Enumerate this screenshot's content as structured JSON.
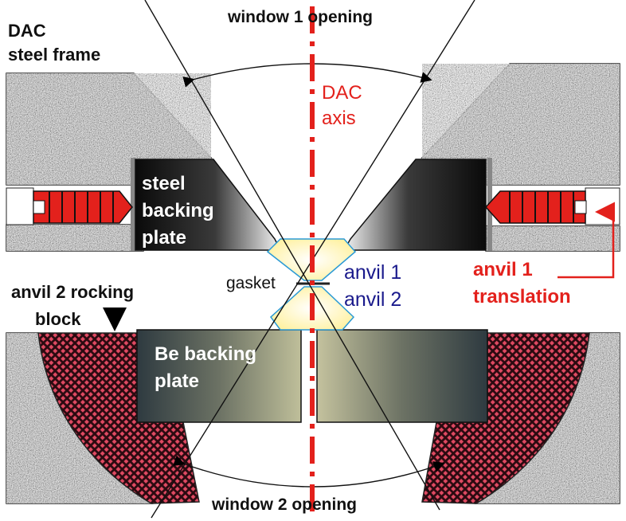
{
  "labels": {
    "window1": "window 1 opening",
    "window2": "window 2 opening",
    "dac_frame_line1": "DAC",
    "dac_frame_line2": "steel frame",
    "dac_axis_line1": "DAC",
    "dac_axis_line2": "axis",
    "steel_plate_line1": "steel",
    "steel_plate_line2": "backing",
    "steel_plate_line3": "plate",
    "gasket": "gasket",
    "anvil1": "anvil 1",
    "anvil2": "anvil 2",
    "rocking_line1": "anvil 2 rocking",
    "rocking_line2": "block",
    "be_plate_line1": "Be backing",
    "be_plate_line2": "plate",
    "translation_line1": "anvil 1",
    "translation_line2": "translation"
  },
  "colors": {
    "axis": "#e3211c",
    "screw": "#e3211c",
    "translation_arrow": "#e3211c",
    "anvil_fill": "#fff7b0",
    "anvil_outline": "#2a9ad6",
    "label_blue": "#1a1a8c",
    "hatch": "#d8203a",
    "frame_granite": "#8a8a8a"
  }
}
